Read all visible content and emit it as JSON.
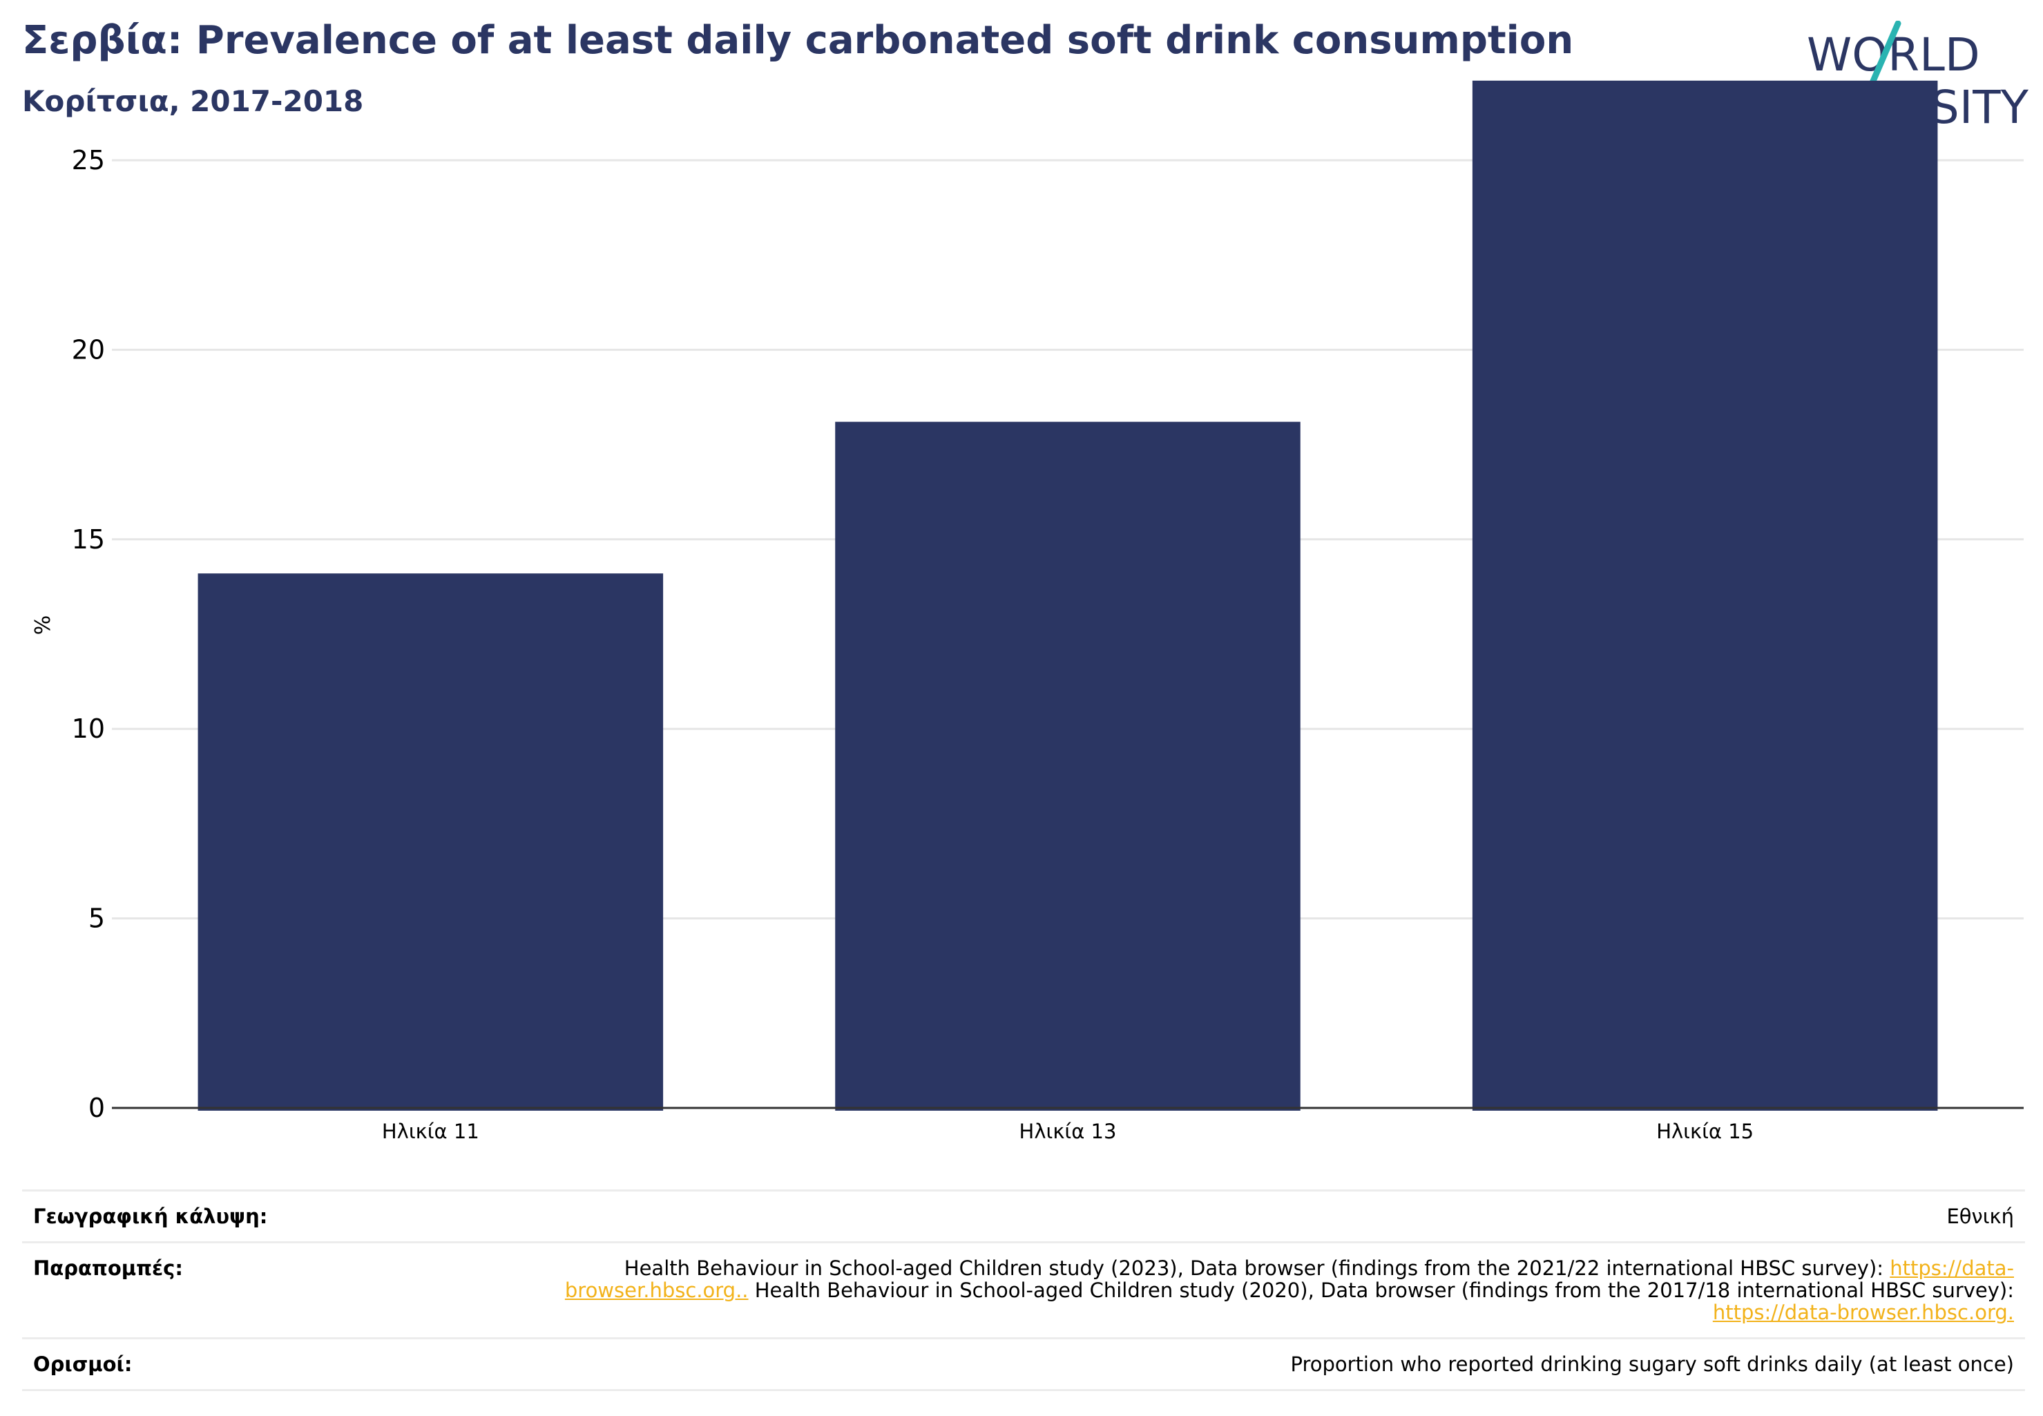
{
  "header": {
    "title": "Σερβία: Prevalence of at least daily carbonated soft drink consumption",
    "subtitle": "Κορίτσια, 2017-2018"
  },
  "logo": {
    "line1": "WORLD",
    "line2": "OBESITY",
    "colors": {
      "text": "#2b3663",
      "slash_top": "#2ab3b1",
      "slash_bottom": "#e8705b"
    }
  },
  "chart_data": {
    "type": "bar",
    "categories": [
      "Ηλικία 11",
      "Ηλικία 13",
      "Ηλικία 15"
    ],
    "values": [
      14.1,
      18.1,
      27.1
    ],
    "ylabel": "%",
    "ylim": [
      0,
      27.5
    ],
    "yticks": [
      0,
      5,
      10,
      15,
      20,
      25
    ],
    "grid": true,
    "bar_color": "#2b3663"
  },
  "meta": {
    "geo_label": "Γεωγραφική κάλυψη:",
    "geo_value": "Εθνική",
    "refs_label": "Παραπομπές:",
    "refs_text1": "Health Behaviour in School-aged Children study (2023), Data browser (findings from the 2021/22 international HBSC survey): ",
    "refs_link1": "https://data-browser.hbsc.org..",
    "refs_text2": " Health Behaviour in School-aged Children study (2020), Data browser (findings from the 2017/18 international HBSC survey): ",
    "refs_link2": "https://data-browser.hbsc.org.",
    "defs_label": "Ορισμοί:",
    "defs_value": "Proportion who reported drinking sugary soft drinks daily (at least once)"
  }
}
